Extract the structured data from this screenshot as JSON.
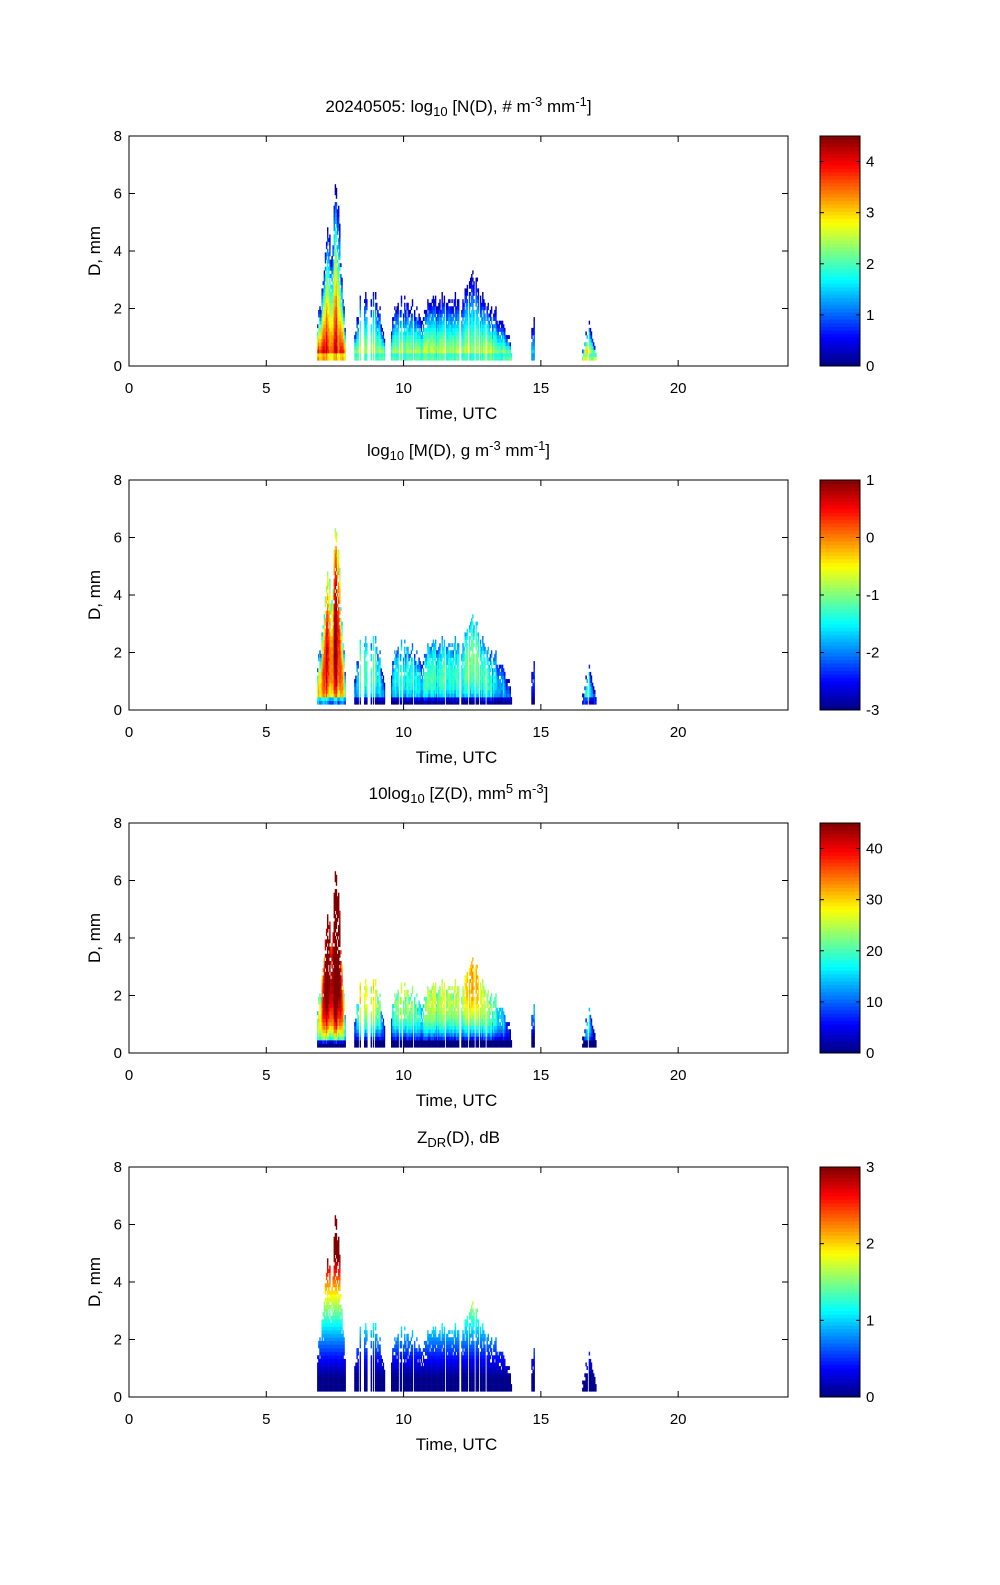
{
  "chart_data": [
    {
      "type": "heatmap",
      "title_parts": [
        {
          "t": "20240505: log"
        },
        {
          "t": "10",
          "s": "sub"
        },
        {
          "t": " [N(D), # m"
        },
        {
          "t": "-3",
          "s": "sup"
        },
        {
          "t": " mm"
        },
        {
          "t": "-1",
          "s": "sup"
        },
        {
          "t": "]"
        }
      ],
      "quantity": "logN",
      "xlabel": "Time, UTC",
      "ylabel": "D, mm",
      "xlim": [
        0,
        24
      ],
      "ylim": [
        0,
        8
      ],
      "xticks": [
        0,
        5,
        10,
        15,
        20
      ],
      "yticks": [
        0,
        2,
        4,
        6,
        8
      ],
      "colorbar": {
        "range": [
          0,
          4.5
        ],
        "ticks": [
          0,
          1,
          2,
          3,
          4
        ],
        "colormap": "jet"
      }
    },
    {
      "type": "heatmap",
      "title_parts": [
        {
          "t": "log"
        },
        {
          "t": "10",
          "s": "sub"
        },
        {
          "t": " [M(D), g m"
        },
        {
          "t": "-3",
          "s": "sup"
        },
        {
          "t": " mm"
        },
        {
          "t": "-1",
          "s": "sup"
        },
        {
          "t": "]"
        }
      ],
      "quantity": "logM",
      "xlabel": "Time, UTC",
      "ylabel": "D, mm",
      "xlim": [
        0,
        24
      ],
      "ylim": [
        0,
        8
      ],
      "xticks": [
        0,
        5,
        10,
        15,
        20
      ],
      "yticks": [
        0,
        2,
        4,
        6,
        8
      ],
      "colorbar": {
        "range": [
          -3,
          1
        ],
        "ticks": [
          -3,
          -2,
          -1,
          0,
          1
        ],
        "colormap": "jet"
      }
    },
    {
      "type": "heatmap",
      "title_parts": [
        {
          "t": "10log"
        },
        {
          "t": "10",
          "s": "sub"
        },
        {
          "t": " [Z(D),  mm"
        },
        {
          "t": "5",
          "s": "sup"
        },
        {
          "t": " m"
        },
        {
          "t": "-3",
          "s": "sup"
        },
        {
          "t": "]"
        }
      ],
      "quantity": "Z",
      "xlabel": "Time, UTC",
      "ylabel": "D, mm",
      "xlim": [
        0,
        24
      ],
      "ylim": [
        0,
        8
      ],
      "xticks": [
        0,
        5,
        10,
        15,
        20
      ],
      "yticks": [
        0,
        2,
        4,
        6,
        8
      ],
      "colorbar": {
        "range": [
          0,
          45
        ],
        "ticks": [
          0,
          10,
          20,
          30,
          40
        ],
        "colormap": "jet"
      }
    },
    {
      "type": "heatmap",
      "title_parts": [
        {
          "t": "Z"
        },
        {
          "t": "DR",
          "s": "sub"
        },
        {
          "t": "(D), dB"
        }
      ],
      "quantity": "ZDR",
      "xlabel": "Time, UTC",
      "ylabel": "D, mm",
      "xlim": [
        0,
        24
      ],
      "ylim": [
        0,
        8
      ],
      "xticks": [
        0,
        5,
        10,
        15,
        20
      ],
      "yticks": [
        0,
        2,
        4,
        6,
        8
      ],
      "colorbar": {
        "range": [
          0,
          3
        ],
        "ticks": [
          0,
          1,
          2,
          3
        ],
        "colormap": "jet"
      }
    }
  ],
  "rain_events": [
    {
      "peak_logN": 4.4,
      "dmax_profile": [
        [
          6.85,
          1.5
        ],
        [
          7.0,
          2.2
        ],
        [
          7.2,
          4.5
        ],
        [
          7.35,
          3.6
        ],
        [
          7.5,
          5.6
        ],
        [
          7.6,
          6.7
        ],
        [
          7.72,
          3.0
        ],
        [
          7.85,
          1.2
        ]
      ]
    },
    {
      "peak_logN": 2.9,
      "dmax_profile": [
        [
          8.2,
          1.0
        ],
        [
          8.4,
          2.3
        ],
        [
          8.8,
          2.5
        ],
        [
          9.1,
          2.0
        ],
        [
          9.3,
          0.8
        ]
      ]
    },
    {
      "peak_logN": 2.9,
      "dmax_profile": [
        [
          9.5,
          1.0
        ],
        [
          9.7,
          2.2
        ],
        [
          10.3,
          2.0
        ],
        [
          10.6,
          1.7
        ],
        [
          11.0,
          2.2
        ],
        [
          12.0,
          2.2
        ],
        [
          12.4,
          2.6
        ],
        [
          12.6,
          3.4
        ],
        [
          12.8,
          2.4
        ],
        [
          13.3,
          1.8
        ],
        [
          13.9,
          0.8
        ]
      ]
    },
    {
      "peak_logN": 1.8,
      "dmax_profile": [
        [
          14.65,
          1.5
        ],
        [
          14.8,
          1.5
        ]
      ]
    },
    {
      "peak_logN": 3.6,
      "dmax_profile": [
        [
          16.5,
          0.4
        ],
        [
          16.7,
          1.5
        ],
        [
          17.0,
          0.4
        ]
      ]
    }
  ]
}
